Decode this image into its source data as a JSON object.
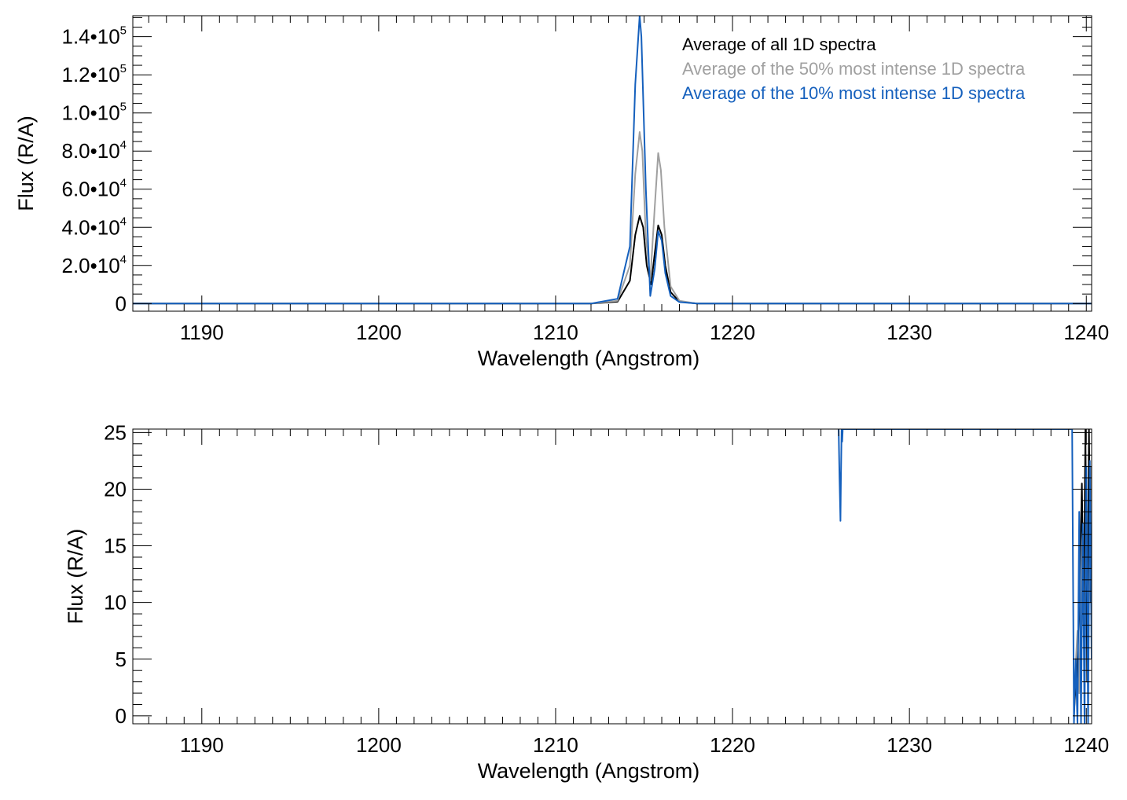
{
  "colors": {
    "all": "#000000",
    "top50": "#a0a0a0",
    "top10": "#1560bd",
    "axis": "#000000"
  },
  "legend": [
    {
      "label": "Average of all 1D spectra",
      "series": "all"
    },
    {
      "label": "Average of the 50% most intense 1D spectra",
      "series": "top50"
    },
    {
      "label": "Average of the 10% most intense 1D spectra",
      "series": "top10"
    }
  ],
  "chart_data": [
    {
      "type": "line",
      "xlabel": "Wavelength (Angstrom)",
      "ylabel": "Flux (R/A)",
      "xlim": [
        1186.1,
        1240.3
      ],
      "ylim": [
        -4000,
        151000
      ],
      "grid": false,
      "legend_position": "top-right",
      "x_ticks": [
        {
          "value": 1190,
          "label": "1190"
        },
        {
          "value": 1200,
          "label": "1200"
        },
        {
          "value": 1210,
          "label": "1210"
        },
        {
          "value": 1220,
          "label": "1220"
        },
        {
          "value": 1230,
          "label": "1230"
        },
        {
          "value": 1240,
          "label": "1240"
        }
      ],
      "y_ticks": [
        {
          "value": 0,
          "mantissa": "0",
          "exp": ""
        },
        {
          "value": 20000,
          "mantissa": "2.0•10",
          "exp": "4"
        },
        {
          "value": 40000,
          "mantissa": "4.0•10",
          "exp": "4"
        },
        {
          "value": 60000,
          "mantissa": "6.0•10",
          "exp": "4"
        },
        {
          "value": 80000,
          "mantissa": "8.0•10",
          "exp": "4"
        },
        {
          "value": 100000,
          "mantissa": "1.0•10",
          "exp": "5"
        },
        {
          "value": 120000,
          "mantissa": "1.2•10",
          "exp": "5"
        },
        {
          "value": 140000,
          "mantissa": "1.4•10",
          "exp": "5"
        }
      ],
      "x_minor_step": 1,
      "y_minor_step": 5000,
      "series": [
        {
          "key": "all",
          "name": "Average of all 1D spectra",
          "x": [
            1186.1,
            1212.0,
            1213.5,
            1214.2,
            1214.5,
            1214.75,
            1214.95,
            1215.15,
            1215.4,
            1215.6,
            1215.8,
            1216.0,
            1216.2,
            1216.5,
            1217.0,
            1218.0,
            1240.3
          ],
          "y": [
            0,
            0,
            1000,
            12000,
            36000,
            46000,
            40000,
            20000,
            10000,
            26000,
            41000,
            36000,
            20000,
            6000,
            1000,
            0,
            0
          ]
        },
        {
          "key": "top50",
          "name": "Average of the 50% most intense 1D spectra",
          "x": [
            1186.1,
            1212.0,
            1213.5,
            1214.2,
            1214.5,
            1214.75,
            1214.9,
            1215.1,
            1215.35,
            1215.6,
            1215.8,
            1215.95,
            1216.15,
            1216.5,
            1217.0,
            1218.0,
            1240.3
          ],
          "y": [
            0,
            0,
            1500,
            20000,
            68000,
            90000,
            80000,
            35000,
            12000,
            50000,
            79000,
            70000,
            40000,
            9000,
            1500,
            0,
            0
          ]
        },
        {
          "key": "top10",
          "name": "Average of the 10% most intense 1D spectra",
          "x": [
            1186.1,
            1212.0,
            1213.5,
            1214.2,
            1214.5,
            1214.75,
            1214.85,
            1215.1,
            1215.35,
            1215.6,
            1215.8,
            1216.0,
            1216.2,
            1216.5,
            1217.0,
            1218.0,
            1240.3
          ],
          "y": [
            0,
            0,
            2500,
            30000,
            115000,
            151000,
            140000,
            60000,
            4000,
            18000,
            38000,
            33000,
            16000,
            4000,
            800,
            0,
            0
          ]
        }
      ]
    },
    {
      "type": "line",
      "xlabel": "Wavelength (Angstrom)",
      "ylabel": "Flux (R/A)",
      "xlim": [
        1186.1,
        1240.3
      ],
      "ylim": [
        -0.7,
        25.3
      ],
      "grid": false,
      "legend_position": "none",
      "x_ticks": [
        {
          "value": 1190,
          "label": "1190"
        },
        {
          "value": 1200,
          "label": "1200"
        },
        {
          "value": 1210,
          "label": "1210"
        },
        {
          "value": 1220,
          "label": "1220"
        },
        {
          "value": 1230,
          "label": "1230"
        },
        {
          "value": 1240,
          "label": "1240"
        }
      ],
      "y_ticks": [
        {
          "value": 0,
          "mantissa": "0",
          "exp": ""
        },
        {
          "value": 5,
          "mantissa": "5",
          "exp": ""
        },
        {
          "value": 10,
          "mantissa": "10",
          "exp": ""
        },
        {
          "value": 15,
          "mantissa": "15",
          "exp": ""
        },
        {
          "value": 20,
          "mantissa": "20",
          "exp": ""
        },
        {
          "value": 25,
          "mantissa": "25",
          "exp": ""
        }
      ],
      "x_minor_step": 1,
      "y_minor_step": 1,
      "series": [
        {
          "key": "all",
          "name": "Average of all 1D spectra",
          "x": [
            1239.3,
            1239.5,
            1239.65,
            1239.75,
            1239.85,
            1239.95,
            1240.05,
            1240.15,
            1240.25
          ],
          "y": [
            0.3,
            5,
            13,
            20.5,
            8,
            25.3,
            3,
            25.3,
            10
          ]
        },
        {
          "key": "top50",
          "name": "Average of the 50% most intense 1D spectra",
          "x": [
            1239.35,
            1239.5,
            1239.6,
            1239.75,
            1239.9,
            1240.0,
            1240.1,
            1240.25
          ],
          "y": [
            3,
            7.5,
            2,
            15,
            5,
            21,
            4,
            22
          ]
        },
        {
          "key": "top10",
          "name": "Average of the 10% most intense 1D spectra",
          "x": [
            1226.0,
            1226.05,
            1226.1,
            1226.13,
            1226.17,
            1226.2,
            1226.23,
            1239.2,
            1239.3,
            1239.4,
            1239.5,
            1239.6,
            1239.7,
            1239.8,
            1239.9,
            1240.0,
            1240.1,
            1240.2,
            1240.3
          ],
          "y": [
            25.3,
            21,
            17.2,
            21,
            25.3,
            24.2,
            25.3,
            25.3,
            -0.7,
            5,
            -0.7,
            18,
            -0.7,
            17,
            -0.7,
            22,
            -0.7,
            22.5,
            5
          ]
        }
      ]
    }
  ]
}
